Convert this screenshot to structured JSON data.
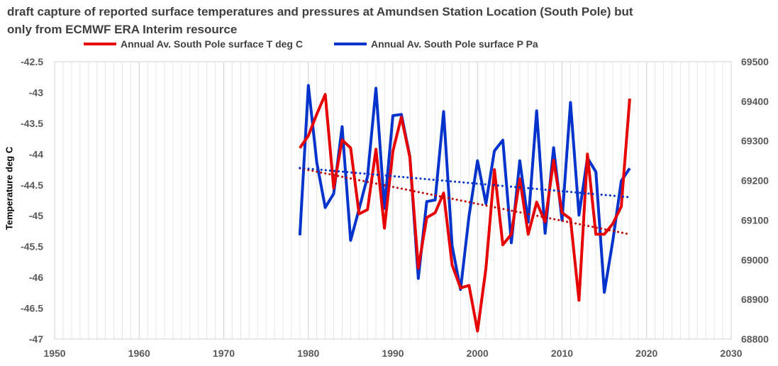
{
  "title_line1": "draft capture of reported surface temperatures and pressures at Amundsen Station Location (South Pole) but",
  "title_line2": "only from ECMWF ERA Interim resource",
  "chart_data": {
    "type": "line",
    "xlabel": "",
    "ylabel": "Temperature deg C",
    "y2label": "",
    "xlim": [
      1950,
      2030
    ],
    "xticks": [
      1950,
      1960,
      1970,
      1980,
      1990,
      2000,
      2010,
      2020,
      2030
    ],
    "ylim": [
      -47,
      -42.5
    ],
    "yticks": [
      "-42.5",
      "-43",
      "-43.5",
      "-44",
      "-44.5",
      "-45",
      "-45.5",
      "-46",
      "-46.5",
      "-47"
    ],
    "y2lim": [
      68800,
      69500
    ],
    "y2ticks": [
      "69500",
      "69400",
      "69300",
      "69200",
      "69100",
      "69000",
      "68900",
      "68800"
    ],
    "grid": true,
    "legend_position": "top",
    "series": [
      {
        "name": "Annual Av. South Pole surface T deg C",
        "axis": "left",
        "color": "#e60000",
        "x": [
          1979,
          1980,
          1981,
          1982,
          1983,
          1984,
          1985,
          1986,
          1987,
          1988,
          1989,
          1990,
          1991,
          1992,
          1993,
          1994,
          1995,
          1996,
          1997,
          1998,
          1999,
          2000,
          2001,
          2002,
          2003,
          2004,
          2005,
          2006,
          2007,
          2008,
          2009,
          2010,
          2011,
          2012,
          2013,
          2014,
          2015,
          2016,
          2017,
          2018
        ],
        "values": [
          -43.9,
          -43.7,
          -43.35,
          -43.03,
          -44.55,
          -43.77,
          -43.9,
          -44.97,
          -44.9,
          -43.92,
          -45.2,
          -43.95,
          -43.4,
          -44.05,
          -45.85,
          -45.03,
          -44.95,
          -44.63,
          -45.8,
          -46.17,
          -46.13,
          -46.87,
          -45.85,
          -44.25,
          -45.47,
          -45.3,
          -44.4,
          -45.3,
          -44.78,
          -45.1,
          -44.1,
          -44.95,
          -45.05,
          -46.37,
          -44.0,
          -45.3,
          -45.3,
          -45.13,
          -44.85,
          -43.1
        ]
      },
      {
        "name": "Annual Av. South Pole surface P Pa",
        "axis": "right",
        "color": "#0033cc",
        "x": [
          1979,
          1980,
          1981,
          1982,
          1983,
          1984,
          1985,
          1986,
          1987,
          1988,
          1989,
          1990,
          1991,
          1992,
          1993,
          1994,
          1995,
          1996,
          1997,
          1998,
          1999,
          2000,
          2001,
          2002,
          2003,
          2004,
          2005,
          2006,
          2007,
          2008,
          2009,
          2010,
          2011,
          2012,
          2013,
          2014,
          2015,
          2016,
          2017,
          2018
        ],
        "values": [
          69062,
          69440,
          69245,
          69132,
          69167,
          69336,
          69049,
          69128,
          69210,
          69433,
          69130,
          69364,
          69367,
          69261,
          68953,
          69147,
          69151,
          69374,
          69035,
          68925,
          69110,
          69250,
          69142,
          69275,
          69302,
          69043,
          69250,
          69095,
          69376,
          69067,
          69283,
          69100,
          69397,
          69113,
          69257,
          69222,
          68918,
          69047,
          69199,
          69231
        ]
      },
      {
        "name": "",
        "axis": "left",
        "color": "#c00000",
        "style": "dotted-trend",
        "x": [
          1979,
          2018
        ],
        "values": [
          -44.23,
          -45.3
        ]
      },
      {
        "name": "",
        "axis": "right",
        "color": "#0033cc",
        "style": "dotted-trend",
        "x": [
          1979,
          2018
        ],
        "values": [
          69232,
          69158
        ]
      }
    ]
  }
}
